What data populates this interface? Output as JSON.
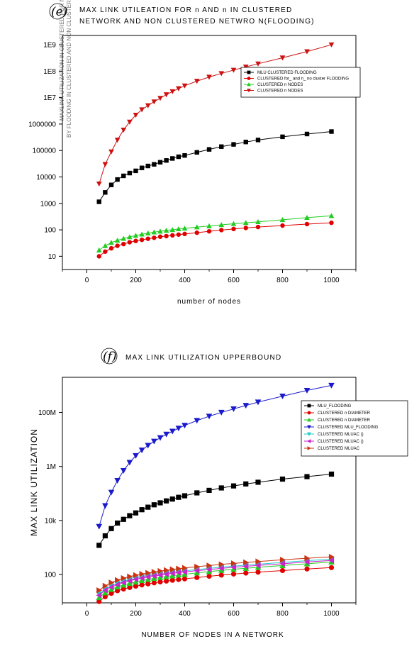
{
  "chart_data": [
    {
      "type": "line",
      "panel_label": "(e)",
      "title_lines": [
        "MAX LINK UTILEATION FOR n AND n  IN CLUSTERED",
        "NETWORK AND NON CLUSTERED NETWRO N(FLOODING)"
      ],
      "xlabel": "number of nodes",
      "ylabel_lines": [
        "MAXLINK UTILIZATION IN CLUSTERED FOR N AND N",
        "BY FLOODING IN CLUSTERED AND NON CLUSTERED NETWORK"
      ],
      "log_y": true,
      "xlim": [
        -100,
        1100
      ],
      "ylim_log10": [
        0.5,
        9.35
      ],
      "xticks": [
        0,
        200,
        400,
        600,
        800,
        1000
      ],
      "yticks": [
        {
          "value": 10,
          "label": "10"
        },
        {
          "value": 100,
          "label": "100"
        },
        {
          "value": 1000,
          "label": "1000"
        },
        {
          "value": 10000,
          "label": "10000"
        },
        {
          "value": 100000,
          "label": "100000"
        },
        {
          "value": 1000000,
          "label": "1000000"
        },
        {
          "value": 10000000,
          "label": "1E7"
        },
        {
          "value": 100000000,
          "label": "1E8"
        },
        {
          "value": 1000000000,
          "label": "1E9"
        }
      ],
      "grid": false,
      "legend_position": "top-right",
      "series": [
        {
          "name": "MLU CLUSTERED FLOODING",
          "color": "#000000",
          "marker": "square",
          "x": [
            50,
            75,
            100,
            125,
            150,
            175,
            200,
            225,
            250,
            275,
            300,
            325,
            350,
            375,
            400,
            450,
            500,
            550,
            600,
            650,
            700,
            800,
            900,
            1000
          ],
          "y": [
            1150,
            2600,
            5000,
            8000,
            11000,
            14000,
            17000,
            22000,
            26000,
            30000,
            36000,
            42000,
            50000,
            58000,
            65000,
            85000,
            110000,
            140000,
            170000,
            210000,
            250000,
            330000,
            420000,
            520000
          ]
        },
        {
          "name": "CLUSTERED for_ and n_ no cluster FLOODING",
          "color": "#e00000",
          "marker": "circle",
          "x": [
            50,
            75,
            100,
            125,
            150,
            175,
            200,
            225,
            250,
            275,
            300,
            325,
            350,
            375,
            400,
            450,
            500,
            550,
            600,
            650,
            700,
            800,
            900,
            1000
          ],
          "y": [
            10,
            15,
            20,
            25,
            29,
            34,
            38,
            42,
            46,
            50,
            55,
            58,
            62,
            66,
            70,
            78,
            88,
            98,
            108,
            118,
            128,
            145,
            165,
            185
          ]
        },
        {
          "name": "CLUSTERED n NODES",
          "color": "#22cc22",
          "marker": "triangle-up",
          "x": [
            50,
            75,
            100,
            125,
            150,
            175,
            200,
            225,
            250,
            275,
            300,
            325,
            350,
            375,
            400,
            450,
            500,
            550,
            600,
            650,
            700,
            800,
            900,
            1000
          ],
          "y": [
            17,
            25,
            33,
            40,
            47,
            54,
            61,
            68,
            75,
            82,
            88,
            95,
            101,
            108,
            114,
            127,
            140,
            155,
            170,
            185,
            200,
            240,
            290,
            340
          ]
        },
        {
          "name": "CLUSTERED n NODES",
          "color": "#cc1111",
          "marker": "triangle-down",
          "x": [
            50,
            75,
            100,
            125,
            150,
            175,
            200,
            225,
            250,
            275,
            300,
            325,
            350,
            375,
            400,
            450,
            500,
            550,
            600,
            650,
            700,
            800,
            900,
            1000
          ],
          "y": [
            5500,
            30000,
            90000,
            250000,
            600000,
            1200000,
            2200000,
            3500000,
            5000000,
            7000000,
            9500000,
            13000000,
            17000000,
            22000000,
            28000000,
            42000000,
            60000000,
            82000000,
            110000000,
            145000000,
            190000000,
            320000000,
            550000000,
            1000000000
          ]
        }
      ]
    },
    {
      "type": "line",
      "panel_label": "(f)",
      "title": "MAX LINK UTILIZATION UPPERBOUND",
      "xlabel": "NUMBER OF NODES IN A NETWORK",
      "ylabel": "MAX LINK UTILIZATION",
      "log_y": true,
      "xlim": [
        -100,
        1100
      ],
      "ylim_log10": [
        0.95,
        9.3
      ],
      "xticks": [
        0,
        200,
        400,
        600,
        800,
        1000
      ],
      "yticks": [
        {
          "value": 100,
          "label": "100"
        },
        {
          "value": 10000,
          "label": "10k"
        },
        {
          "value": 1000000,
          "label": "1M"
        },
        {
          "value": 100000000,
          "label": "100M"
        }
      ],
      "grid": false,
      "legend_position": "top-right",
      "series": [
        {
          "name": "MLU_FLOODING",
          "color": "#000000",
          "marker": "square",
          "x": [
            50,
            75,
            100,
            125,
            150,
            175,
            200,
            225,
            250,
            275,
            300,
            325,
            350,
            375,
            400,
            450,
            500,
            550,
            600,
            650,
            700,
            800,
            900,
            1000
          ],
          "y": [
            1200,
            2700,
            5000,
            8000,
            11000,
            15000,
            19000,
            25000,
            31000,
            38000,
            45000,
            53000,
            62000,
            72000,
            82000,
            105000,
            130000,
            160000,
            190000,
            225000,
            260000,
            340000,
            420000,
            520000
          ]
        },
        {
          "name": "CLUSTERED n DIAMETER",
          "color": "#e00000",
          "marker": "circle",
          "x": [
            50,
            75,
            100,
            125,
            150,
            175,
            200,
            225,
            250,
            275,
            300,
            325,
            350,
            375,
            400,
            450,
            500,
            550,
            600,
            650,
            700,
            800,
            900,
            1000
          ],
          "y": [
            10,
            15,
            20,
            25,
            29,
            33,
            37,
            41,
            45,
            49,
            53,
            57,
            61,
            65,
            69,
            77,
            86,
            95,
            104,
            113,
            122,
            140,
            160,
            180
          ]
        },
        {
          "name": "CLUSTERED n DIAMETER",
          "color": "#22cc22",
          "marker": "triangle-up",
          "x": [
            50,
            75,
            100,
            125,
            150,
            175,
            200,
            225,
            250,
            275,
            300,
            325,
            350,
            375,
            400,
            450,
            500,
            550,
            600,
            650,
            700,
            800,
            900,
            1000
          ],
          "y": [
            14,
            21,
            28,
            35,
            41,
            47,
            53,
            60,
            66,
            72,
            78,
            84,
            90,
            96,
            102,
            115,
            128,
            142,
            156,
            170,
            185,
            215,
            250,
            290
          ]
        },
        {
          "name": "CLUSTERED MLU_FLOODING",
          "color": "#1a1acc",
          "marker": "triangle-down",
          "x": [
            50,
            75,
            100,
            125,
            150,
            175,
            200,
            225,
            250,
            275,
            300,
            325,
            350,
            375,
            400,
            450,
            500,
            550,
            600,
            650,
            700,
            800,
            900,
            1000
          ],
          "y": [
            6000,
            35000,
            110000,
            300000,
            700000,
            1400000,
            2500000,
            4000000,
            6000000,
            8500000,
            11500000,
            15500000,
            20000000,
            26000000,
            33000000,
            50000000,
            72000000,
            100000000,
            135000000,
            180000000,
            240000000,
            400000000,
            650000000,
            1000000000
          ]
        },
        {
          "name": "CLUSTERED MLUAC ()",
          "color": "#22cccc",
          "marker": "triangle-down",
          "x": [
            50,
            75,
            100,
            125,
            150,
            175,
            200,
            225,
            250,
            275,
            300,
            325,
            350,
            375,
            400,
            450,
            500,
            550,
            600,
            650,
            700,
            800,
            900,
            1000
          ],
          "y": [
            19,
            28,
            37,
            46,
            55,
            63,
            71,
            80,
            88,
            96,
            104,
            112,
            120,
            128,
            136,
            152,
            168,
            186,
            204,
            222,
            240,
            280,
            325,
            370
          ]
        },
        {
          "name": "CLUSTERED MLUAC ()",
          "color": "#cc22cc",
          "marker": "triangle-left",
          "x": [
            50,
            75,
            100,
            125,
            150,
            175,
            200,
            225,
            250,
            275,
            300,
            325,
            350,
            375,
            400,
            450,
            500,
            550,
            600,
            650,
            700,
            800,
            900,
            1000
          ],
          "y": [
            17,
            26,
            34,
            42,
            50,
            58,
            66,
            73,
            81,
            88,
            95,
            103,
            110,
            117,
            124,
            138,
            152,
            168,
            184,
            200,
            216,
            250,
            290,
            330
          ]
        },
        {
          "name": "CLUSTERED MLUAC",
          "color": "#cc3311",
          "marker": "triangle-right",
          "x": [
            50,
            75,
            100,
            125,
            150,
            175,
            200,
            225,
            250,
            275,
            300,
            325,
            350,
            375,
            400,
            450,
            500,
            550,
            600,
            650,
            700,
            800,
            900,
            1000
          ],
          "y": [
            26,
            38,
            50,
            62,
            73,
            84,
            94,
            104,
            114,
            124,
            134,
            144,
            154,
            164,
            174,
            194,
            214,
            236,
            258,
            280,
            302,
            350,
            400,
            450
          ]
        }
      ]
    }
  ]
}
